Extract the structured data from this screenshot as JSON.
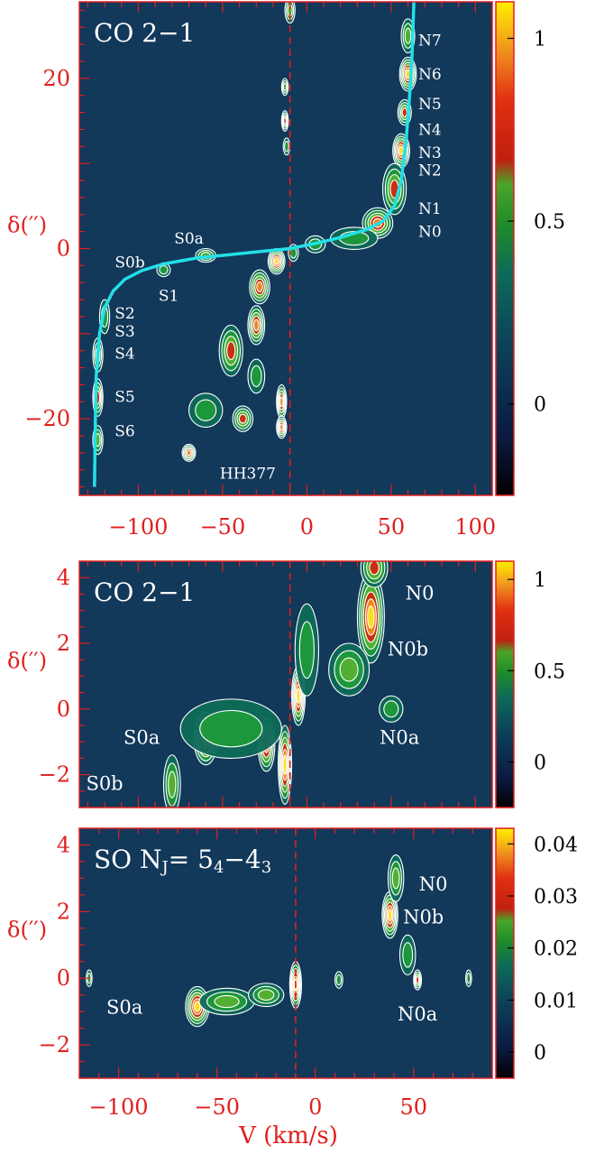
{
  "colors": {
    "axis": "#e02020",
    "contour": "#ffffff",
    "fit_curve": "#22e0e8",
    "systemic_line": "#e02020"
  },
  "axis_common": {
    "xlabel": "V (km/s)",
    "ylabel": "δ(′′)"
  },
  "chart_data": [
    {
      "type": "heatmap",
      "panel_title": "CO 2−1",
      "xlim": [
        -135,
        110
      ],
      "ylim": [
        -29,
        29
      ],
      "xticks": [
        -100,
        -50,
        0,
        50,
        100
      ],
      "xtick_labels": [
        "−100",
        "−50",
        "0",
        "50",
        "100"
      ],
      "yticks": [
        20,
        0,
        -20
      ],
      "ytick_labels": [
        "20",
        "0",
        "−20"
      ],
      "ylabel": "δ(′′)",
      "colorbar": {
        "min": -0.25,
        "max": 1.1,
        "ticks": [
          1,
          0.5,
          0
        ],
        "labels": [
          "1",
          "0.5",
          "0"
        ]
      },
      "systemic_velocity": -10,
      "annotations": [
        {
          "text": "N7",
          "x": 73,
          "y": 24.5
        },
        {
          "text": "N6",
          "x": 73,
          "y": 20.5
        },
        {
          "text": "N5",
          "x": 73,
          "y": 17
        },
        {
          "text": "N4",
          "x": 73,
          "y": 14
        },
        {
          "text": "N3",
          "x": 73,
          "y": 11.3
        },
        {
          "text": "N2",
          "x": 73,
          "y": 9.2
        },
        {
          "text": "N1",
          "x": 73,
          "y": 4.7
        },
        {
          "text": "N0",
          "x": 73,
          "y": 2
        },
        {
          "text": "S0a",
          "x": -70,
          "y": 1.2
        },
        {
          "text": "S0b",
          "x": -105,
          "y": -1.6
        },
        {
          "text": "S1",
          "x": -82,
          "y": -5.5
        },
        {
          "text": "S2",
          "x": -108,
          "y": -7.6
        },
        {
          "text": "S3",
          "x": -108,
          "y": -9.7
        },
        {
          "text": "S4",
          "x": -108,
          "y": -12.3
        },
        {
          "text": "S5",
          "x": -108,
          "y": -17.4
        },
        {
          "text": "S6",
          "x": -108,
          "y": -21.4
        },
        {
          "text": "HH377",
          "x": -35,
          "y": -26.4
        }
      ],
      "blobs": [
        {
          "x": 60,
          "y": 20.5,
          "sx": 5,
          "sy": 2,
          "a": 1.0
        },
        {
          "x": 58,
          "y": 16,
          "sx": 4,
          "sy": 1.5,
          "a": 0.7
        },
        {
          "x": 56,
          "y": 11.5,
          "sx": 5,
          "sy": 2,
          "a": 1.0
        },
        {
          "x": 52,
          "y": 7,
          "sx": 7,
          "sy": 3,
          "a": 0.65
        },
        {
          "x": 42,
          "y": 3,
          "sx": 9,
          "sy": 1.8,
          "a": 0.85
        },
        {
          "x": 60,
          "y": 25,
          "sx": 4,
          "sy": 2,
          "a": 0.45
        },
        {
          "x": 28,
          "y": 1.2,
          "sx": 14,
          "sy": 1.3,
          "a": 0.35
        },
        {
          "x": 5,
          "y": 0.5,
          "sx": 6,
          "sy": 1,
          "a": 0.35
        },
        {
          "x": -8,
          "y": -0.5,
          "sx": 3,
          "sy": 1,
          "a": 0.4
        },
        {
          "x": -18,
          "y": -1.5,
          "sx": 5,
          "sy": 1.5,
          "a": 1.0
        },
        {
          "x": -28,
          "y": -4.5,
          "sx": 6,
          "sy": 2,
          "a": 0.8
        },
        {
          "x": -30,
          "y": -9,
          "sx": 5,
          "sy": 2.3,
          "a": 0.75
        },
        {
          "x": -45,
          "y": -12,
          "sx": 7,
          "sy": 3,
          "a": 0.65
        },
        {
          "x": -30,
          "y": -15,
          "sx": 5,
          "sy": 2,
          "a": 0.4
        },
        {
          "x": -15,
          "y": -18,
          "sx": 3,
          "sy": 2,
          "a": 0.75
        },
        {
          "x": -15,
          "y": -21,
          "sx": 3,
          "sy": 1.3,
          "a": 0.85
        },
        {
          "x": -38,
          "y": -20,
          "sx": 6,
          "sy": 1.5,
          "a": 0.6
        },
        {
          "x": -60,
          "y": -19,
          "sx": 10,
          "sy": 2,
          "a": 0.4
        },
        {
          "x": -70,
          "y": -24,
          "sx": 4,
          "sy": 1,
          "a": 0.8
        },
        {
          "x": -60,
          "y": -0.8,
          "sx": 6,
          "sy": 0.8,
          "a": 0.5
        },
        {
          "x": -85,
          "y": -2.5,
          "sx": 4,
          "sy": 0.8,
          "a": 0.4
        },
        {
          "x": -120,
          "y": -8,
          "sx": 3,
          "sy": 2,
          "a": 0.4
        },
        {
          "x": -124,
          "y": -12.5,
          "sx": 3,
          "sy": 2,
          "a": 0.55
        },
        {
          "x": -124,
          "y": -17.5,
          "sx": 3,
          "sy": 2.2,
          "a": 0.6
        },
        {
          "x": -124,
          "y": -22.5,
          "sx": 3,
          "sy": 1.7,
          "a": 0.5
        },
        {
          "x": -13,
          "y": 15,
          "sx": 2,
          "sy": 1.2,
          "a": 0.65
        },
        {
          "x": -13,
          "y": 19,
          "sx": 2,
          "sy": 1,
          "a": 0.45
        },
        {
          "x": -10,
          "y": 28,
          "sx": 3,
          "sy": 1.5,
          "a": 0.45
        },
        {
          "x": -12,
          "y": 12,
          "sx": 2,
          "sy": 1,
          "a": 0.3
        }
      ]
    },
    {
      "type": "heatmap",
      "panel_title": "CO 2−1",
      "xlim": [
        -135,
        110
      ],
      "ylim": [
        -3,
        4.5
      ],
      "xticks": [
        -100,
        -50,
        0,
        50,
        100
      ],
      "yticks": [
        4,
        2,
        0,
        -2
      ],
      "ytick_labels": [
        "4",
        "2",
        "0",
        "−2"
      ],
      "ylabel": "δ(′′)",
      "colorbar": {
        "min": -0.25,
        "max": 1.1,
        "ticks": [
          1,
          0.5,
          0
        ],
        "labels": [
          "1",
          "0.5",
          "0"
        ]
      },
      "systemic_velocity": -10,
      "annotations": [
        {
          "text": "N0",
          "x": 67,
          "y": 3.5
        },
        {
          "text": "N0b",
          "x": 60,
          "y": 1.8
        },
        {
          "text": "N0a",
          "x": 55,
          "y": -0.9
        },
        {
          "text": "S0a",
          "x": -98,
          "y": -0.9
        },
        {
          "text": "S0b",
          "x": -120,
          "y": -2.3
        }
      ],
      "blobs": [
        {
          "x": -60,
          "y": -0.9,
          "sx": 7,
          "sy": 0.8,
          "a": 1.0
        },
        {
          "x": -80,
          "y": -2.3,
          "sx": 5,
          "sy": 0.9,
          "a": 0.55
        },
        {
          "x": -13,
          "y": -1.7,
          "sx": 4,
          "sy": 1.2,
          "a": 1.0
        },
        {
          "x": -24,
          "y": -1.1,
          "sx": 5,
          "sy": 0.8,
          "a": 0.8
        },
        {
          "x": -5,
          "y": 0.4,
          "sx": 4,
          "sy": 0.9,
          "a": 0.95
        },
        {
          "x": 38,
          "y": 2.8,
          "sx": 8,
          "sy": 1.4,
          "a": 1.0
        },
        {
          "x": 40,
          "y": 4.3,
          "sx": 8,
          "sy": 0.6,
          "a": 0.6
        },
        {
          "x": 25,
          "y": 1.2,
          "sx": 12,
          "sy": 0.8,
          "a": 0.55
        },
        {
          "x": 50,
          "y": 0.0,
          "sx": 7,
          "sy": 0.4,
          "a": 0.25
        },
        {
          "x": -45,
          "y": -0.6,
          "sx": 30,
          "sy": 0.9,
          "a": 0.35
        },
        {
          "x": 0,
          "y": 1.8,
          "sx": 7,
          "sy": 1.4,
          "a": 0.35
        }
      ]
    },
    {
      "type": "heatmap",
      "panel_title": "SO N<sub>J</sub>= 5<sub>4</sub>−4<sub>3</sub>",
      "xlim": [
        -120,
        90
      ],
      "ylim": [
        -3,
        4.5
      ],
      "xticks": [
        -100,
        -50,
        0,
        50
      ],
      "xtick_labels": [
        "−100",
        "−50",
        "0",
        "50"
      ],
      "yticks": [
        4,
        2,
        0,
        -2
      ],
      "ytick_labels": [
        "4",
        "2",
        "0",
        "−2"
      ],
      "ylabel": "δ(′′)",
      "colorbar": {
        "min": -0.005,
        "max": 0.043,
        "ticks": [
          0.04,
          0.03,
          0.02,
          0.01,
          0
        ],
        "labels": [
          "0.04",
          "0.03",
          "0.02",
          "0.01",
          "0"
        ]
      },
      "systemic_velocity": -10,
      "annotations": [
        {
          "text": "N0",
          "x": 60,
          "y": 2.8
        },
        {
          "text": "N0b",
          "x": 55,
          "y": 1.8
        },
        {
          "text": "N0a",
          "x": 52,
          "y": -1.1
        },
        {
          "text": "S0a",
          "x": -97,
          "y": -0.9
        }
      ],
      "blobs": [
        {
          "x": -60,
          "y": -0.85,
          "sx": 6,
          "sy": 0.6,
          "a": 1.0
        },
        {
          "x": -45,
          "y": -0.7,
          "sx": 14,
          "sy": 0.4,
          "a": 0.5
        },
        {
          "x": -25,
          "y": -0.5,
          "sx": 9,
          "sy": 0.35,
          "a": 0.5
        },
        {
          "x": -10,
          "y": -0.2,
          "sx": 3,
          "sy": 0.7,
          "a": 0.95
        },
        {
          "x": 38,
          "y": 1.9,
          "sx": 4,
          "sy": 0.7,
          "a": 1.0
        },
        {
          "x": 41,
          "y": 3.0,
          "sx": 4,
          "sy": 0.7,
          "a": 0.5
        },
        {
          "x": 47,
          "y": 0.7,
          "sx": 4,
          "sy": 0.6,
          "a": 0.35
        },
        {
          "x": 52,
          "y": -0.05,
          "sx": 2,
          "sy": 0.3,
          "a": 0.7
        },
        {
          "x": 12,
          "y": -0.05,
          "sx": 2,
          "sy": 0.25,
          "a": 0.3
        },
        {
          "x": -115,
          "y": 0.0,
          "sx": 1.5,
          "sy": 0.25,
          "a": 0.3
        },
        {
          "x": 78,
          "y": 0.0,
          "sx": 1.5,
          "sy": 0.25,
          "a": 0.3
        }
      ]
    }
  ],
  "fit_curve_top": {
    "description": "Cyan S-shaped curve",
    "points": [
      [
        -126,
        -28
      ],
      [
        -125.5,
        -20
      ],
      [
        -125,
        -15
      ],
      [
        -123,
        -10
      ],
      [
        -120,
        -7
      ],
      [
        -115,
        -5
      ],
      [
        -108,
        -3.6
      ],
      [
        -98,
        -2.6
      ],
      [
        -85,
        -1.8
      ],
      [
        -65,
        -1.1
      ],
      [
        -45,
        -0.7
      ],
      [
        -25,
        -0.3
      ],
      [
        -10,
        0
      ],
      [
        5,
        0.6
      ],
      [
        20,
        1.3
      ],
      [
        35,
        2.2
      ],
      [
        45,
        3.2
      ],
      [
        52,
        5
      ],
      [
        56,
        8
      ],
      [
        59,
        13
      ],
      [
        61,
        18
      ],
      [
        62.5,
        23
      ],
      [
        63.5,
        29
      ]
    ]
  }
}
